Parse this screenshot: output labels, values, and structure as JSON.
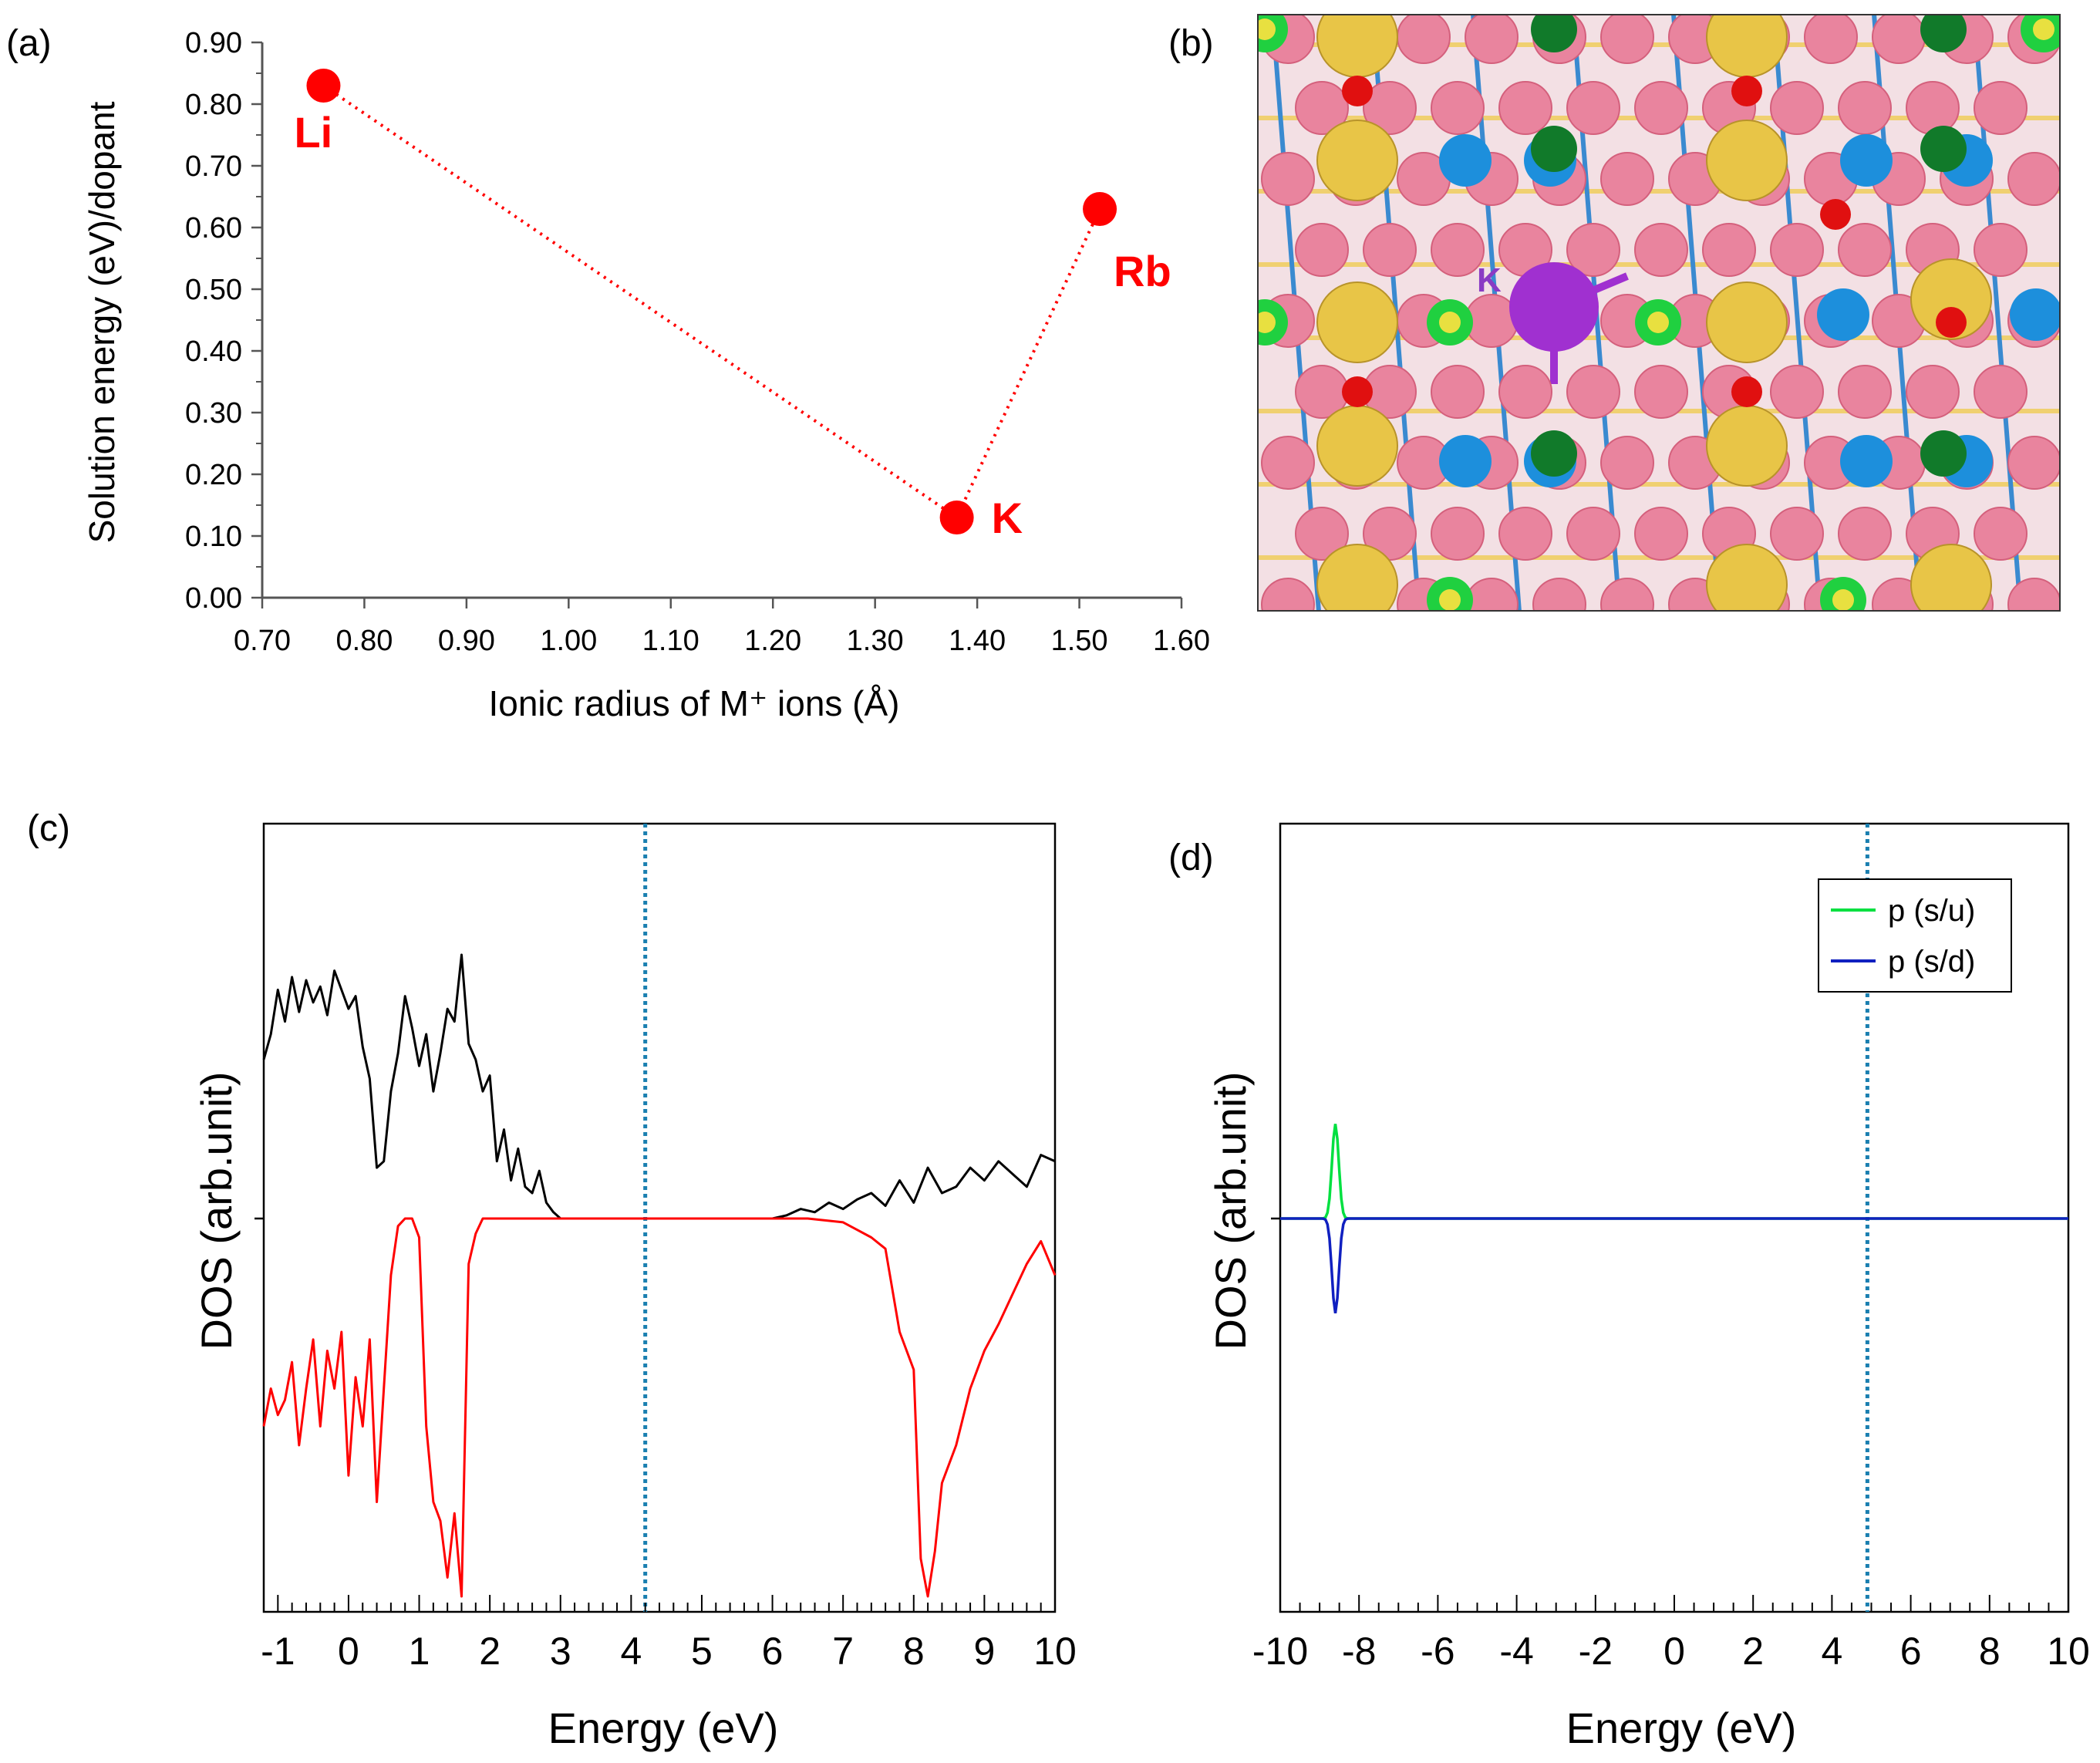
{
  "panels": {
    "a": {
      "letter": "(a)"
    },
    "b": {
      "letter": "(b)",
      "atom_label": "K"
    },
    "c": {
      "letter": "(c)"
    },
    "d": {
      "letter": "(d)"
    }
  },
  "colors": {
    "red": "#ff0000",
    "black": "#000000",
    "fermi": "#1a7fb0",
    "green": "#00e040",
    "blue": "#1020c0",
    "purple_line": "#8855cc",
    "yellow_atom": "#e8c547",
    "blue_atom": "#1d8fdc",
    "green_atom": "#117a2a",
    "pink_atom": "#e9849e",
    "red_atom": "#e01010",
    "k_atom": "#a030d0"
  },
  "chart_data": [
    {
      "id": "a",
      "type": "scatter",
      "xlabel": "Ionic radius of M⁺ ions (Å)",
      "ylabel": "Solution energy (eV)/dopant",
      "xlim": [
        0.7,
        1.6
      ],
      "ylim": [
        0.0,
        0.9
      ],
      "xticks": [
        "0.70",
        "0.80",
        "0.90",
        "1.00",
        "1.10",
        "1.20",
        "1.30",
        "1.40",
        "1.50",
        "1.60"
      ],
      "yticks": [
        "0.00",
        "0.10",
        "0.20",
        "0.30",
        "0.40",
        "0.50",
        "0.60",
        "0.70",
        "0.80",
        "0.90"
      ],
      "points": [
        {
          "label": "Li",
          "x": 0.76,
          "y": 0.83
        },
        {
          "label": "K",
          "x": 1.38,
          "y": 0.13
        },
        {
          "label": "Rb",
          "x": 1.52,
          "y": 0.63
        }
      ]
    },
    {
      "id": "c",
      "type": "line",
      "xlabel": "Energy (eV)",
      "ylabel": "DOS (arb.unit)",
      "xlim": [
        -1.2,
        10
      ],
      "xticks": [
        "-1",
        "0",
        "1",
        "2",
        "3",
        "4",
        "5",
        "6",
        "7",
        "8",
        "9",
        "10"
      ],
      "fermi_level": 4.2,
      "series": [
        {
          "color": "black",
          "x": [
            -1.2,
            -1.1,
            -1.0,
            -0.9,
            -0.8,
            -0.7,
            -0.6,
            -0.5,
            -0.4,
            -0.3,
            -0.2,
            -0.1,
            0.0,
            0.1,
            0.2,
            0.3,
            0.4,
            0.5,
            0.6,
            0.7,
            0.8,
            0.9,
            1.0,
            1.1,
            1.2,
            1.3,
            1.4,
            1.5,
            1.6,
            1.7,
            1.8,
            1.9,
            2.0,
            2.1,
            2.2,
            2.3,
            2.4,
            2.5,
            2.6,
            2.7,
            2.8,
            2.9,
            3.0,
            6.0,
            6.2,
            6.4,
            6.6,
            6.8,
            7.0,
            7.2,
            7.4,
            7.6,
            7.8,
            8.0,
            8.2,
            8.4,
            8.6,
            8.8,
            9.0,
            9.2,
            9.4,
            9.6,
            9.8,
            10.0
          ],
          "y": [
            0.5,
            0.58,
            0.72,
            0.62,
            0.76,
            0.65,
            0.75,
            0.68,
            0.73,
            0.64,
            0.78,
            0.72,
            0.66,
            0.7,
            0.54,
            0.44,
            0.16,
            0.18,
            0.4,
            0.52,
            0.7,
            0.6,
            0.48,
            0.58,
            0.4,
            0.52,
            0.66,
            0.62,
            0.83,
            0.55,
            0.5,
            0.4,
            0.45,
            0.18,
            0.28,
            0.12,
            0.22,
            0.1,
            0.08,
            0.15,
            0.05,
            0.02,
            0.0,
            0.0,
            0.01,
            0.03,
            0.02,
            0.05,
            0.03,
            0.06,
            0.08,
            0.04,
            0.12,
            0.05,
            0.16,
            0.08,
            0.1,
            0.16,
            0.12,
            0.18,
            0.14,
            0.1,
            0.2,
            0.18
          ]
        },
        {
          "color": "red",
          "x": [
            -1.2,
            -1.1,
            -1.0,
            -0.9,
            -0.8,
            -0.7,
            -0.6,
            -0.5,
            -0.4,
            -0.3,
            -0.2,
            -0.1,
            0.0,
            0.1,
            0.2,
            0.3,
            0.4,
            0.5,
            0.6,
            0.7,
            0.8,
            0.9,
            1.0,
            1.1,
            1.2,
            1.3,
            1.4,
            1.5,
            1.6,
            1.7,
            1.8,
            1.9,
            2.0,
            3.0,
            4.0,
            5.0,
            6.0,
            6.5,
            7.0,
            7.2,
            7.4,
            7.6,
            7.8,
            8.0,
            8.1,
            8.2,
            8.3,
            8.4,
            8.6,
            8.8,
            9.0,
            9.2,
            9.4,
            9.6,
            9.8,
            10.0
          ],
          "y": [
            -0.55,
            -0.45,
            -0.52,
            -0.48,
            -0.38,
            -0.6,
            -0.45,
            -0.32,
            -0.55,
            -0.35,
            -0.45,
            -0.3,
            -0.68,
            -0.42,
            -0.55,
            -0.32,
            -0.75,
            -0.45,
            -0.15,
            -0.02,
            0.0,
            0.0,
            -0.05,
            -0.55,
            -0.75,
            -0.8,
            -0.95,
            -0.78,
            -1.0,
            -0.12,
            -0.04,
            0.0,
            0.0,
            0.0,
            0.0,
            0.0,
            0.0,
            0.0,
            -0.01,
            -0.03,
            -0.05,
            -0.08,
            -0.3,
            -0.4,
            -0.9,
            -1.0,
            -0.88,
            -0.7,
            -0.6,
            -0.45,
            -0.35,
            -0.28,
            -0.2,
            -0.12,
            -0.06,
            -0.15
          ]
        }
      ]
    },
    {
      "id": "d",
      "type": "line",
      "xlabel": "Energy (eV)",
      "ylabel": "DOS (arb.unit)",
      "xlim": [
        -10,
        10
      ],
      "xticks": [
        "-10",
        "-8",
        "-6",
        "-4",
        "-2",
        "0",
        "2",
        "4",
        "6",
        "8",
        "10"
      ],
      "fermi_level": 4.9,
      "legend": "top-right",
      "series": [
        {
          "name": "p (s/u)",
          "color": "green",
          "peak_x": -8.6,
          "peak_y": 0.25
        },
        {
          "name": "p (s/d)",
          "color": "blue",
          "peak_x": -8.6,
          "peak_y": -0.25
        }
      ]
    }
  ]
}
